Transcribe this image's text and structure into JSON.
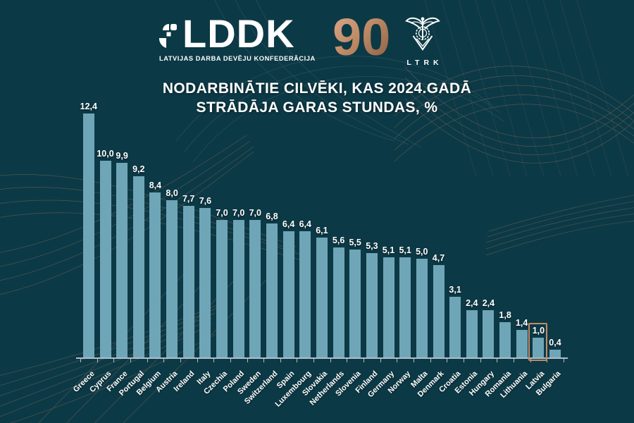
{
  "header": {
    "lddk_name": "LDDK",
    "lddk_tagline": "LATVIJAS DARBA DEVĒJU KONFEDERĀCIJA",
    "anniversary": "90",
    "ltrk_letters": "LTRK"
  },
  "title": {
    "line1": "NODARBINĀTIE CILVĒKI, KAS 2024.GADĀ",
    "line2": "STRĀDĀJA GARAS STUNDAS, %"
  },
  "chart_data": {
    "type": "bar",
    "title": "NODARBINĀTIE CILVĒKI, KAS 2024.GADĀ STRĀDĀJA GARAS STUNDAS, %",
    "categories": [
      "Greece",
      "Cyprus",
      "France",
      "Portugal",
      "Belgium",
      "Austria",
      "Ireland",
      "Italy",
      "Czechia",
      "Poland",
      "Sweden",
      "Switzerland",
      "Spain",
      "Luxembourg",
      "Slovakia",
      "Netherlands",
      "Slovenia",
      "Finland",
      "Germany",
      "Norway",
      "Malta",
      "Denmark",
      "Croatia",
      "Estonia",
      "Hungary",
      "Romania",
      "Lithuania",
      "Latvia",
      "Bulgaria"
    ],
    "values": [
      12.4,
      10.0,
      9.9,
      9.2,
      8.4,
      8.0,
      7.7,
      7.6,
      7.0,
      7.0,
      7.0,
      6.8,
      6.4,
      6.4,
      6.1,
      5.6,
      5.5,
      5.3,
      5.1,
      5.1,
      5.0,
      4.7,
      3.1,
      2.4,
      2.4,
      1.8,
      1.4,
      1.0,
      0.4
    ],
    "value_labels": [
      "12,4",
      "10,0",
      "9,9",
      "9,2",
      "8,4",
      "8,0",
      "7,7",
      "7,6",
      "7,0",
      "7,0",
      "7,0",
      "6,8",
      "6,4",
      "6,4",
      "6,1",
      "5,6",
      "5,5",
      "5,3",
      "5,1",
      "5,1",
      "5,0",
      "4,7",
      "3,1",
      "2,4",
      "2,4",
      "1,8",
      "1,4",
      "1,0",
      "0,4"
    ],
    "highlighted_category": "Latvia",
    "xlabel": "",
    "ylabel": "",
    "ylim": [
      0,
      13
    ],
    "grid": false,
    "legend_position": "none"
  },
  "colors": {
    "background": "#0C3946",
    "bar": "#6FA6B7",
    "highlight_box": "#C48B66",
    "axis": "#AEBFC6",
    "text": "#FFFFFF",
    "accent_copper": "#A87C5D",
    "anniversary_gradient_start": "#D8A486",
    "anniversary_gradient_end": "#8F6148"
  }
}
